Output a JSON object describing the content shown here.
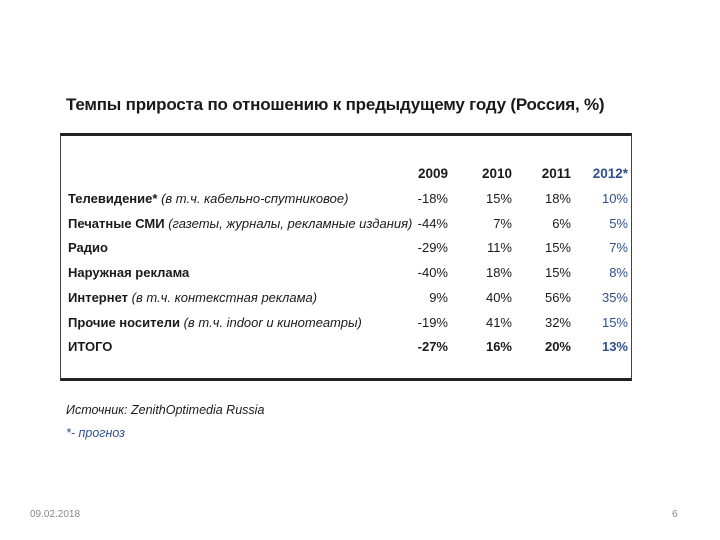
{
  "title": "Темпы прироста по отношению к предыдущему году (Россия, %)",
  "table": {
    "headers": [
      "2009",
      "2010",
      "2011",
      "2012*"
    ],
    "rows": [
      {
        "main": "Телевидение*",
        "note": " (в т.ч.  кабельно-спутниковое)",
        "values": [
          "-18%",
          "15%",
          "18%",
          "10%"
        ]
      },
      {
        "main": "Печатные СМИ",
        "note": " (газеты, журналы, рекламные издания)",
        "values": [
          "-44%",
          "7%",
          "6%",
          "5%"
        ]
      },
      {
        "main": "Радио",
        "note": "",
        "values": [
          "-29%",
          "11%",
          "15%",
          "7%"
        ]
      },
      {
        "main": "Наружная реклама",
        "note": "",
        "values": [
          "-40%",
          "18%",
          "15%",
          "8%"
        ]
      },
      {
        "main": "Интернет",
        "note": " (в т.ч.  контекстная реклама)",
        "values": [
          "9%",
          "40%",
          "56%",
          "35%"
        ]
      },
      {
        "main": "Прочие носители",
        "note": " (в т.ч.  indoor и кинотеатры)",
        "values": [
          "-19%",
          "41%",
          "32%",
          "15%"
        ]
      },
      {
        "main": "ИТОГО",
        "note": "",
        "values": [
          "-27%",
          "16%",
          "20%",
          "13%"
        ]
      }
    ]
  },
  "source": "Источник: ZenithOptimedia Russia",
  "forecast_note": "*- прогноз",
  "footer": {
    "date": "09.02.2018",
    "page": "6"
  },
  "colors": {
    "forecast": "#2f4f8f"
  }
}
